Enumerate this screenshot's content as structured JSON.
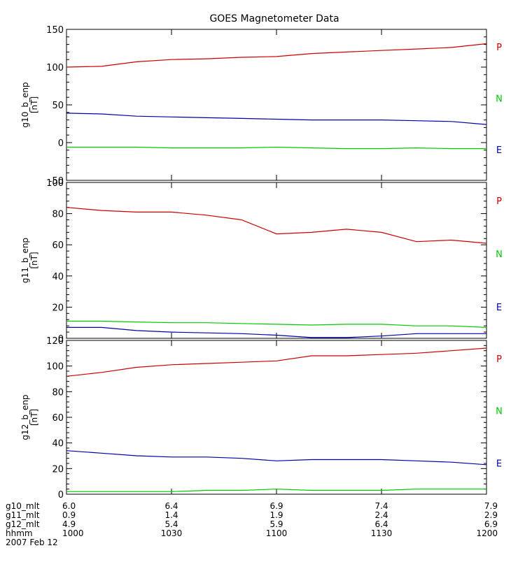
{
  "title": "GOES Magnetometer Data",
  "colors": {
    "P": "#cc0000",
    "N": "#00cc00",
    "E": "#0000aa",
    "axis": "#000000"
  },
  "chart_data": [
    {
      "type": "line",
      "ylabel": "g10_b_enp",
      "yunit": "[nT]",
      "ylim": [
        -50,
        150
      ],
      "yticks": [
        -50,
        0,
        50,
        100,
        150
      ],
      "legend_order": [
        "P",
        "N",
        "E"
      ],
      "x": [
        1000,
        1010,
        1020,
        1030,
        1040,
        1050,
        1100,
        1110,
        1120,
        1130,
        1140,
        1150,
        1200
      ],
      "series": [
        {
          "name": "P",
          "values": [
            100,
            101,
            107,
            110,
            111,
            113,
            114,
            118,
            120,
            122,
            124,
            126,
            131
          ]
        },
        {
          "name": "N",
          "values": [
            -6,
            -6,
            -6,
            -7,
            -7,
            -7,
            -6,
            -7,
            -8,
            -8,
            -7,
            -8,
            -8
          ]
        },
        {
          "name": "E",
          "values": [
            39,
            38,
            35,
            34,
            33,
            32,
            31,
            30,
            30,
            30,
            29,
            28,
            24
          ]
        }
      ]
    },
    {
      "type": "line",
      "ylabel": "g11_b_enp",
      "yunit": "[nT]",
      "ylim": [
        0,
        100
      ],
      "yticks": [
        0,
        20,
        40,
        60,
        80,
        100
      ],
      "legend_order": [
        "P",
        "N",
        "E"
      ],
      "x": [
        1000,
        1010,
        1020,
        1030,
        1040,
        1050,
        1100,
        1110,
        1120,
        1130,
        1140,
        1150,
        1200
      ],
      "series": [
        {
          "name": "P",
          "values": [
            84,
            82,
            81,
            81,
            79,
            76,
            67,
            68,
            70,
            68,
            62,
            63,
            61
          ]
        },
        {
          "name": "N",
          "values": [
            11,
            11,
            10.5,
            10,
            10,
            9.5,
            9,
            8.5,
            9,
            9,
            8,
            8,
            7
          ]
        },
        {
          "name": "E",
          "values": [
            7,
            7,
            5,
            4,
            3.5,
            3,
            2,
            0.5,
            0.5,
            1.5,
            3,
            3,
            3
          ]
        }
      ]
    },
    {
      "type": "line",
      "ylabel": "g12_b_enp",
      "yunit": "[nT]",
      "ylim": [
        0,
        120
      ],
      "yticks": [
        0,
        20,
        40,
        60,
        80,
        100,
        120
      ],
      "legend_order": [
        "P",
        "N",
        "E"
      ],
      "x": [
        1000,
        1010,
        1020,
        1030,
        1040,
        1050,
        1100,
        1110,
        1120,
        1130,
        1140,
        1150,
        1200
      ],
      "series": [
        {
          "name": "P",
          "values": [
            92,
            95,
            99,
            101,
            102,
            103,
            104,
            108,
            108,
            109,
            110,
            112,
            114
          ]
        },
        {
          "name": "N",
          "values": [
            2,
            2,
            2,
            2,
            3,
            3,
            4,
            3,
            3,
            3,
            4,
            4,
            4
          ]
        },
        {
          "name": "E",
          "values": [
            34,
            32,
            30,
            29,
            29,
            28,
            26,
            27,
            27,
            27,
            26,
            25,
            23
          ]
        }
      ]
    }
  ],
  "xaxis": {
    "rows": [
      {
        "label": "g10_mlt",
        "values": [
          "6.0",
          "6.4",
          "6.9",
          "7.4",
          "7.9"
        ]
      },
      {
        "label": "g11_mlt",
        "values": [
          "0.9",
          "1.4",
          "1.9",
          "2.4",
          "2.9"
        ]
      },
      {
        "label": "g12_mlt",
        "values": [
          "4.9",
          "5.4",
          "5.9",
          "6.4",
          "6.9"
        ]
      },
      {
        "label": "hhmm",
        "values": [
          "1000",
          "1030",
          "1100",
          "1130",
          "1200"
        ]
      }
    ],
    "tick_hhmm": [
      1000,
      1030,
      1100,
      1130,
      1200
    ],
    "date": "2007 Feb 12"
  }
}
